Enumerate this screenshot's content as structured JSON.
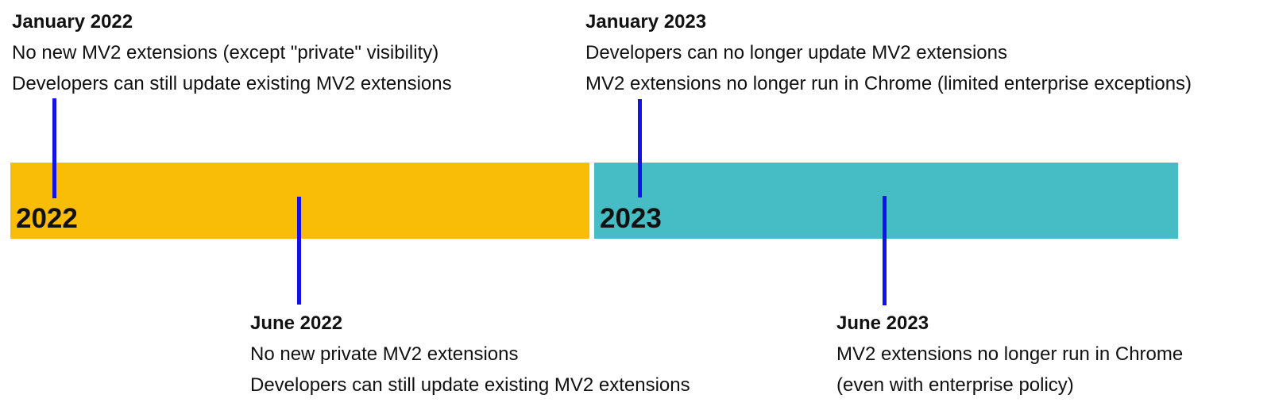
{
  "timeline": {
    "connector_color": "#1212E8",
    "years": [
      {
        "label": "2022",
        "color": "#F9BC07"
      },
      {
        "label": "2023",
        "color": "#46BCC4"
      }
    ],
    "events": [
      {
        "title": "January 2022",
        "lines": [
          "No new MV2 extensions (except \"private\" visibility)",
          "Developers can still update existing MV2 extensions"
        ],
        "position": "above-bar"
      },
      {
        "title": "June 2022",
        "lines": [
          "No new private MV2 extensions",
          "Developers can still update existing MV2 extensions"
        ],
        "position": "below-bar"
      },
      {
        "title": "January 2023",
        "lines": [
          "Developers can no longer update MV2 extensions",
          "MV2 extensions no longer run in Chrome (limited enterprise exceptions)"
        ],
        "position": "above-bar"
      },
      {
        "title": "June 2023",
        "lines": [
          "MV2 extensions no longer run in Chrome",
          "(even with enterprise policy)"
        ],
        "position": "below-bar"
      }
    ]
  }
}
